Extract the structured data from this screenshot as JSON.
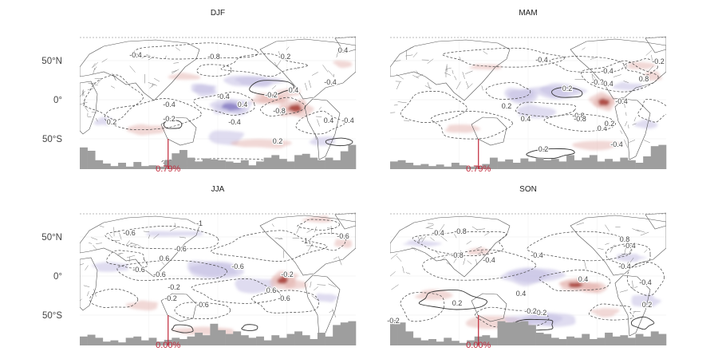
{
  "map_type": "seasonal global anomaly maps with contours and bar histogram",
  "colors": {
    "positive": "#9c2a22",
    "positive_light": "#e6b8b4",
    "negative": "#6a5fb4",
    "negative_light": "#c9c4e6",
    "coast": "#555555",
    "contour": "#444444",
    "histogram": "#9e9e9e",
    "marker": "#c0283a"
  },
  "y_labels": [
    "50°N",
    "0°",
    "50°S"
  ],
  "panels": [
    {
      "title": "DJF",
      "percent": "0.79%",
      "marker_x_frac": 0.32,
      "contour_labels": [
        "-0.4",
        "-0.8",
        "0.2",
        "-0.4",
        "0.4",
        "-0.4",
        "-0.2",
        "0.4",
        "-0.8",
        "-0.4",
        "-0.2",
        "0.4",
        "0.2",
        "0.2",
        "-0.4",
        "-0.4",
        "0.4"
      ],
      "hist": [
        0.85,
        0.72,
        0.35,
        0.22,
        0.12,
        0.25,
        0.1,
        0.28,
        0.12,
        0.15,
        0.1,
        0.35,
        0.62,
        0.75,
        0.45,
        0.3,
        0.42,
        0.38,
        0.35,
        0.3,
        0.25,
        0.35,
        0.15,
        0.3,
        0.45,
        0.55,
        0.4,
        0.3,
        0.55,
        0.6,
        0.45,
        0.35,
        0.45,
        0.35,
        0.7,
        0.95
      ]
    },
    {
      "title": "MAM",
      "percent": "0.79%",
      "marker_x_frac": 0.32,
      "contour_labels": [
        "-0.4",
        "-0.4",
        "-0.2",
        "0.8",
        "-0.2",
        "-0.4",
        "0.2",
        "0.4",
        "-0.8",
        "0.2",
        "0.4",
        "-0.4",
        "0.2",
        "-0.8",
        "0.2",
        "-0.4"
      ],
      "hist": [
        0.3,
        0.35,
        0.25,
        0.15,
        0.2,
        0.12,
        0.18,
        0.1,
        0.25,
        0.15,
        0.1,
        0.12,
        0.2,
        0.45,
        0.3,
        0.38,
        0.25,
        0.42,
        0.3,
        0.45,
        0.35,
        0.4,
        0.3,
        0.55,
        0.35,
        0.45,
        0.55,
        0.3,
        0.4,
        0.3,
        0.45,
        0.35,
        0.25,
        0.5,
        0.9,
        0.95
      ]
    },
    {
      "title": "JJA",
      "percent": "0.00%",
      "marker_x_frac": 0.32,
      "contour_labels": [
        "-0.6",
        "-1",
        "-0.6",
        "0.6",
        "-0.6",
        "-0.6",
        "-0.6",
        "-0.2",
        "-1",
        "-0.6",
        "-0.6",
        "-0.2",
        "-0.6",
        "0.6",
        "-0.2"
      ],
      "hist": [
        0.35,
        0.42,
        0.3,
        0.15,
        0.2,
        0.12,
        0.3,
        0.35,
        0.2,
        0.3,
        0.15,
        0.22,
        0.3,
        0.25,
        0.35,
        0.5,
        0.4,
        0.85,
        0.6,
        0.45,
        0.55,
        0.4,
        0.3,
        0.35,
        0.2,
        0.4,
        0.3,
        0.45,
        0.55,
        0.4,
        0.25,
        0.5,
        0.35,
        0.8,
        0.9,
        0.95
      ]
    },
    {
      "title": "SON",
      "percent": "0.00%",
      "marker_x_frac": 0.32,
      "contour_labels": [
        "-0.4",
        "-0.8",
        "-0.4",
        "-0.8",
        "0.8",
        "-0.4",
        "0.4",
        "-0.4",
        "-0.4",
        "0.4",
        "0.2",
        "-0.4",
        "0.2",
        "-0.2",
        "0.2",
        "-0.2"
      ],
      "hist": [
        1.0,
        0.9,
        0.55,
        0.3,
        0.2,
        0.25,
        0.15,
        0.3,
        0.18,
        0.1,
        0.2,
        0.35,
        0.4,
        0.3,
        0.95,
        0.9,
        0.92,
        0.95,
        0.8,
        0.5,
        0.45,
        0.3,
        0.25,
        0.35,
        0.3,
        0.45,
        0.25,
        0.3,
        0.5,
        0.35,
        0.4,
        0.3,
        0.45,
        0.35,
        0.55,
        0.45
      ]
    }
  ]
}
